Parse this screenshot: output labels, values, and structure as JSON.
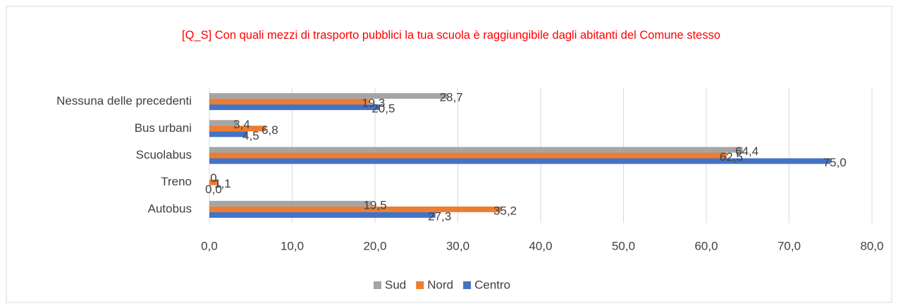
{
  "chart_data": {
    "type": "bar",
    "orientation": "horizontal",
    "title": "[Q_S] Con quali mezzi di trasporto pubblici la tua scuola è raggiungibile dagli abitanti del Comune stesso",
    "categories": [
      "Nessuna delle precedenti",
      "Bus urbani",
      "Scuolabus",
      "Treno",
      "Autobus"
    ],
    "series": [
      {
        "name": "Sud",
        "color": "#a5a5a5",
        "values": [
          28.7,
          3.4,
          64.4,
          0,
          19.5
        ],
        "value_labels": [
          "28,7",
          "3,4",
          "64,4",
          "0",
          "19,5"
        ]
      },
      {
        "name": "Nord",
        "color": "#ed7d31",
        "values": [
          19.3,
          6.8,
          62.5,
          1.1,
          35.2
        ],
        "value_labels": [
          "19,3",
          "6,8",
          "62,5",
          "1,1",
          "35,2"
        ]
      },
      {
        "name": "Centro",
        "color": "#4472c4",
        "values": [
          20.5,
          4.5,
          75.0,
          0.0,
          27.3
        ],
        "value_labels": [
          "20,5",
          "4,5",
          "75,0",
          "0,0",
          "27,3"
        ]
      }
    ],
    "xlim": [
      0,
      80
    ],
    "xticks": [
      {
        "value": 0,
        "label": "0,0"
      },
      {
        "value": 10,
        "label": "10,0"
      },
      {
        "value": 20,
        "label": "20,0"
      },
      {
        "value": 30,
        "label": "30,0"
      },
      {
        "value": 40,
        "label": "40,0"
      },
      {
        "value": 50,
        "label": "50,0"
      },
      {
        "value": 60,
        "label": "60,0"
      },
      {
        "value": 70,
        "label": "70,0"
      },
      {
        "value": 80,
        "label": "80,0"
      }
    ],
    "grid": true,
    "legend": "bottom"
  }
}
